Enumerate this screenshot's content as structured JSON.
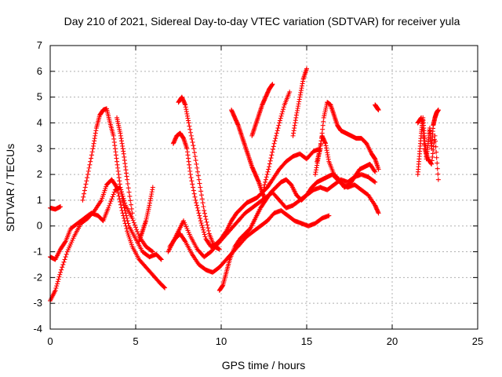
{
  "chart_data": {
    "type": "scatter",
    "title": "Day 210 of 2021, Sidereal Day-to-day VTEC variation (SDTVAR) for receiver yula",
    "xlabel": "GPS time / hours",
    "ylabel": "SDTVAR / TECUs",
    "xlim": [
      0,
      25
    ],
    "ylim": [
      -4,
      7
    ],
    "xticks": [
      0,
      5,
      10,
      15,
      20,
      25
    ],
    "yticks": [
      -4,
      -3,
      -2,
      -1,
      0,
      1,
      2,
      3,
      4,
      5,
      6,
      7
    ],
    "grid": true,
    "marker": "+",
    "color": "#ff0000",
    "series": [
      {
        "x": [
          0.0,
          0.3,
          0.6,
          0.9,
          1.2,
          1.6,
          2.0,
          2.4,
          2.8,
          3.1,
          3.4,
          3.8,
          4.1,
          4.4,
          4.8,
          5.2,
          5.6,
          6.0
        ],
        "values": [
          -1.2,
          -1.3,
          -0.9,
          -0.6,
          -0.1,
          0.1,
          0.3,
          0.5,
          0.4,
          0.2,
          0.7,
          1.4,
          1.5,
          0.8,
          0.3,
          -0.4,
          -0.8,
          -1.0
        ]
      },
      {
        "x": [
          0.0,
          0.3,
          0.6,
          1.0,
          1.4,
          1.8,
          2.2,
          2.6,
          3.0,
          3.3,
          3.6,
          3.9,
          4.2,
          4.5,
          4.8,
          5.2,
          5.6,
          6.0,
          6.4,
          6.7
        ],
        "values": [
          -2.9,
          -2.5,
          -1.8,
          -1.0,
          -0.4,
          0.1,
          0.3,
          0.6,
          1.0,
          1.6,
          1.8,
          1.5,
          0.6,
          -0.2,
          -0.8,
          -1.3,
          -1.6,
          -1.9,
          -2.2,
          -2.4
        ]
      },
      {
        "x": [
          0.0,
          0.3,
          0.6
        ],
        "values": [
          0.7,
          0.65,
          0.75
        ]
      },
      {
        "x": [
          1.9,
          2.2,
          2.5,
          2.7,
          2.9,
          3.1,
          3.3,
          3.5,
          3.7,
          3.9,
          4.1,
          4.3,
          4.6,
          5.0,
          5.4,
          5.8,
          6.2,
          6.5
        ],
        "values": [
          1.0,
          2.0,
          3.0,
          3.8,
          4.3,
          4.5,
          4.55,
          4.0,
          3.5,
          2.5,
          1.5,
          0.8,
          0.0,
          -0.5,
          -1.0,
          -1.2,
          -1.1,
          -1.3
        ]
      },
      {
        "x": [
          3.9,
          4.1,
          4.3,
          4.5,
          4.8
        ],
        "values": [
          4.2,
          3.6,
          2.8,
          1.8,
          0.5
        ]
      },
      {
        "x": [
          5.2,
          5.4,
          5.6,
          5.8,
          6.0
        ],
        "values": [
          -0.6,
          -0.2,
          0.2,
          0.8,
          1.5
        ]
      },
      {
        "x": [
          6.9,
          7.2,
          7.5,
          7.8,
          8.2,
          8.6,
          9.0,
          9.4,
          9.8,
          10.2,
          10.6,
          11.0,
          11.4,
          11.8,
          12.2,
          12.6,
          13.0,
          13.4,
          13.8,
          14.2,
          14.6,
          15.0,
          15.4,
          15.8,
          16.2,
          16.6,
          17.0,
          17.4,
          17.8,
          18.2,
          18.6,
          19.0
        ],
        "values": [
          -1.0,
          -0.6,
          -0.2,
          0.2,
          -0.4,
          -0.9,
          -1.2,
          -1.0,
          -0.7,
          -0.4,
          -0.1,
          0.2,
          0.5,
          0.7,
          0.9,
          1.1,
          1.3,
          1.0,
          0.7,
          0.8,
          1.0,
          1.2,
          1.4,
          1.5,
          1.4,
          1.6,
          1.8,
          1.7,
          1.9,
          2.0,
          1.9,
          1.7
        ]
      },
      {
        "x": [
          7.0,
          7.3,
          7.6,
          7.9,
          8.3,
          8.7,
          9.1,
          9.5,
          9.9,
          10.3,
          10.7,
          11.1,
          11.5,
          11.9,
          12.3,
          12.7,
          13.1,
          13.5,
          13.9,
          14.3,
          14.7,
          15.1,
          15.5,
          15.9,
          16.3
        ],
        "values": [
          -0.8,
          -0.5,
          -0.3,
          -0.6,
          -1.1,
          -1.5,
          -1.7,
          -1.8,
          -1.6,
          -1.3,
          -1.0,
          -0.7,
          -0.4,
          -0.2,
          0.0,
          0.2,
          0.5,
          0.6,
          0.4,
          0.2,
          0.1,
          0.0,
          0.1,
          0.3,
          0.4
        ]
      },
      {
        "x": [
          7.2,
          7.4,
          7.6,
          7.8,
          8.0,
          8.2,
          8.5,
          8.8,
          9.1,
          9.4,
          9.7,
          10.0,
          10.3,
          10.6,
          10.9,
          11.2,
          11.5,
          11.8,
          12.1,
          12.4,
          12.7,
          13.0,
          13.4,
          13.8,
          14.2,
          14.6,
          15.0,
          15.4,
          15.8
        ],
        "values": [
          3.2,
          3.5,
          3.6,
          3.4,
          3.0,
          2.0,
          1.0,
          0.2,
          -0.5,
          -0.8,
          -0.7,
          -0.5,
          -0.2,
          0.2,
          0.5,
          0.7,
          0.9,
          1.0,
          1.1,
          1.3,
          1.5,
          1.8,
          2.2,
          2.5,
          2.7,
          2.8,
          2.6,
          2.9,
          3.0
        ]
      },
      {
        "x": [
          7.5,
          7.7,
          7.9,
          8.1,
          8.4,
          8.7,
          9.0,
          9.3,
          9.6,
          9.9
        ],
        "values": [
          4.8,
          5.0,
          4.7,
          4.0,
          3.0,
          1.8,
          0.6,
          -0.3,
          -0.8,
          -0.9
        ]
      },
      {
        "x": [
          9.9,
          10.1,
          10.3,
          10.5,
          10.8,
          11.1,
          11.4,
          11.7,
          12.0,
          12.3,
          12.6,
          12.9,
          13.2,
          13.5,
          13.8,
          14.1,
          14.4,
          14.7,
          15.0,
          15.3,
          15.6,
          15.9,
          16.2,
          16.5,
          16.8,
          17.1,
          17.4,
          17.8,
          18.2,
          18.6,
          19.0,
          19.2
        ],
        "values": [
          -2.5,
          -2.3,
          -1.8,
          -1.3,
          -0.8,
          -0.5,
          -0.3,
          -0.1,
          0.3,
          0.7,
          1.0,
          1.3,
          1.5,
          1.7,
          1.8,
          1.6,
          1.2,
          1.0,
          1.2,
          1.5,
          1.7,
          1.8,
          1.9,
          2.0,
          1.8,
          1.6,
          1.5,
          1.6,
          1.4,
          1.2,
          0.8,
          0.5
        ]
      },
      {
        "x": [
          10.6,
          10.8,
          11.0,
          11.2,
          11.4,
          11.6,
          11.8,
          12.0,
          12.2,
          12.4,
          12.6
        ],
        "values": [
          4.5,
          4.2,
          3.9,
          3.5,
          3.1,
          2.7,
          2.3,
          2.0,
          1.7,
          1.3,
          1.0
        ]
      },
      {
        "x": [
          11.8,
          12.0,
          12.2,
          12.4,
          12.6,
          12.8,
          13.0
        ],
        "values": [
          3.5,
          3.9,
          4.3,
          4.7,
          5.0,
          5.3,
          5.5
        ]
      },
      {
        "x": [
          12.5,
          12.8,
          13.1,
          13.4,
          13.7,
          14.0
        ],
        "values": [
          1.5,
          2.3,
          3.2,
          4.0,
          4.7,
          5.2
        ]
      },
      {
        "x": [
          14.2,
          14.4,
          14.6,
          14.8,
          15.0
        ],
        "values": [
          3.5,
          4.3,
          5.0,
          5.7,
          6.1
        ]
      },
      {
        "x": [
          15.6,
          15.8,
          16.0,
          16.2,
          16.4,
          16.6,
          16.8,
          17.0,
          17.3,
          17.6,
          17.9,
          18.2,
          18.5,
          18.8,
          19.0,
          19.2
        ],
        "values": [
          2.5,
          3.0,
          4.2,
          4.8,
          4.7,
          4.3,
          3.9,
          3.7,
          3.6,
          3.5,
          3.4,
          3.4,
          3.2,
          2.8,
          2.6,
          2.2
        ]
      },
      {
        "x": [
          15.5,
          15.7,
          15.9,
          16.1,
          16.3,
          16.6,
          16.9,
          17.2,
          17.5,
          17.8,
          18.1,
          18.4,
          18.7,
          19.0
        ],
        "values": [
          2.0,
          2.7,
          3.5,
          3.2,
          2.5,
          2.0,
          1.8,
          1.5,
          1.6,
          1.9,
          2.2,
          2.3,
          2.4,
          2.1
        ]
      },
      {
        "x": [
          19.0,
          19.1,
          19.2
        ],
        "values": [
          4.7,
          4.6,
          4.5
        ]
      },
      {
        "x": [
          21.5,
          21.6,
          21.7,
          21.8,
          21.9,
          22.0,
          22.1,
          22.2,
          22.3,
          22.4,
          22.5,
          22.6,
          22.7
        ],
        "values": [
          2.0,
          2.8,
          3.6,
          4.2,
          3.4,
          2.6,
          3.2,
          3.8,
          3.0,
          3.9,
          4.2,
          4.4,
          4.5
        ]
      },
      {
        "x": [
          21.5,
          21.7,
          21.9,
          22.1,
          22.3,
          22.5,
          22.7
        ],
        "values": [
          4.0,
          4.2,
          3.0,
          2.6,
          2.4,
          3.5,
          1.8
        ]
      }
    ]
  }
}
